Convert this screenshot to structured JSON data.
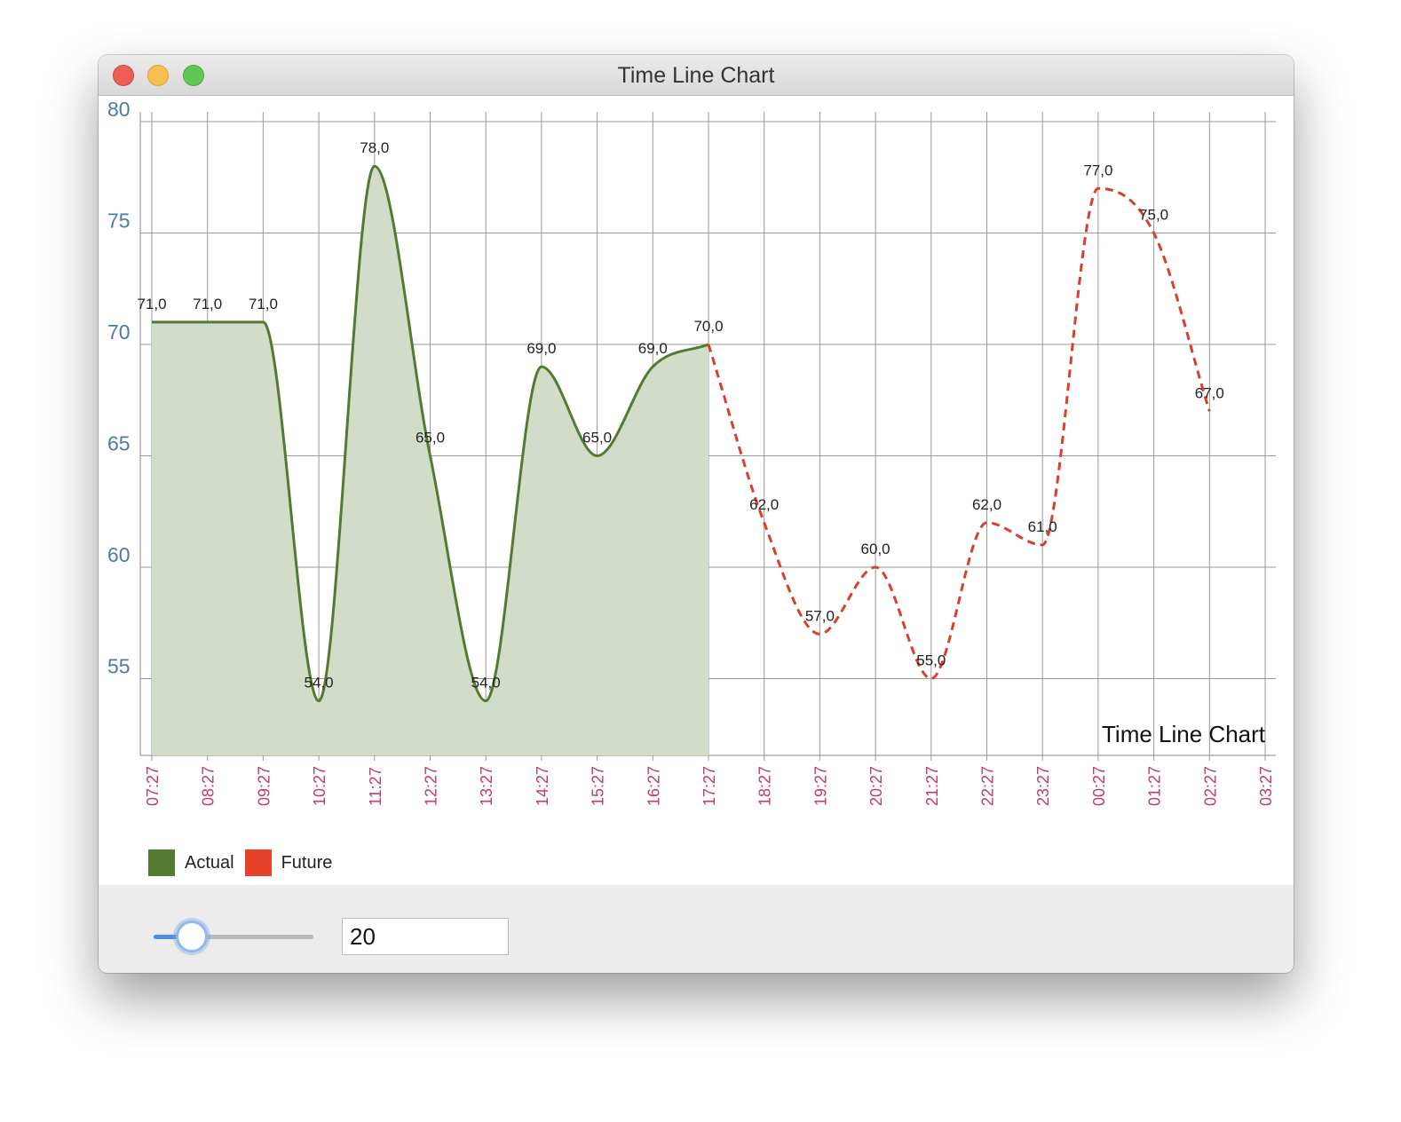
{
  "window": {
    "title": "Time Line Chart"
  },
  "controls": {
    "slider_value": 20,
    "slider_min": 0,
    "slider_max": 100,
    "field_value": "20"
  },
  "legend": [
    {
      "label": "Actual",
      "color": "#527a30"
    },
    {
      "label": "Future",
      "color": "#e8412a"
    }
  ],
  "chart_data": {
    "type": "area",
    "title": "Time Line Chart",
    "xlabel": "",
    "ylabel": "",
    "ylim": [
      50.5,
      80
    ],
    "yticks": [
      55,
      60,
      65,
      70,
      75,
      80
    ],
    "x_tick_labels": [
      "07:27",
      "08:27",
      "09:27",
      "10:27",
      "11:27",
      "12:27",
      "13:27",
      "14:27",
      "15:27",
      "16:27",
      "17:27",
      "18:27",
      "19:27",
      "20:27",
      "21:27",
      "22:27",
      "23:27",
      "00:27",
      "01:27",
      "02:27",
      "03:27"
    ],
    "grid": true,
    "legend_position": "bottom-left",
    "series": [
      {
        "name": "Actual",
        "color": "#527a30",
        "fill": "#d2ddc9",
        "style": "solid-area",
        "x": [
          "07:27",
          "08:27",
          "09:27",
          "10:27",
          "11:27",
          "12:27",
          "13:27",
          "14:27",
          "15:27",
          "16:27",
          "17:27"
        ],
        "values": [
          71,
          71,
          71,
          54,
          78,
          65,
          54,
          69,
          65,
          69,
          70
        ],
        "labels": [
          "71,0",
          "71,0",
          "71,0",
          "54,0",
          "78,0",
          "65,0",
          "54,0",
          "69,0",
          "65,0",
          "69,0",
          "70,0"
        ]
      },
      {
        "name": "Future",
        "color": "#d9402b",
        "style": "dashed",
        "x": [
          "17:27",
          "18:27",
          "19:27",
          "20:27",
          "21:27",
          "22:27",
          "23:27",
          "00:27",
          "01:27",
          "02:27"
        ],
        "values": [
          70,
          62,
          57,
          60,
          55,
          62,
          61,
          77,
          75,
          67
        ],
        "labels": [
          "70,0",
          "62,0",
          "57,0",
          "60,0",
          "55,0",
          "62,0",
          "61,0",
          "77,0",
          "75,0",
          "67,0"
        ]
      }
    ]
  }
}
